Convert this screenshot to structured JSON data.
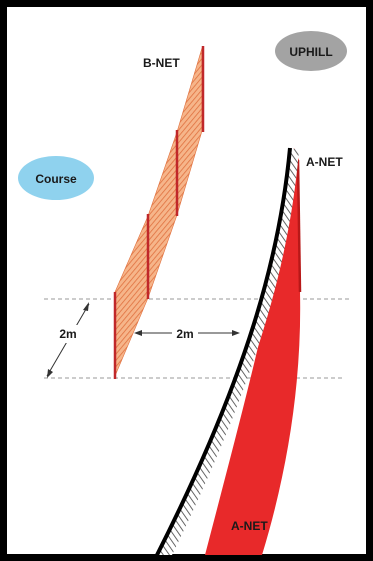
{
  "labels": {
    "uphill": "UPHILL",
    "course": "Course",
    "b_net": "B-NET",
    "a_net_top": "A-NET",
    "a_net_bottom": "A-NET",
    "dim_vertical": "2m",
    "dim_horizontal": "2m"
  },
  "colors": {
    "frame": "#000000",
    "a_net": "#e8292a",
    "a_net_dark": "#b81818",
    "b_net": "#f2a070",
    "b_net_line": "#c9482a",
    "post": "#c0282a",
    "badge_course": "#8fd2ee",
    "badge_uphill": "#a3a3a3",
    "guide": "#9a9a9a"
  }
}
